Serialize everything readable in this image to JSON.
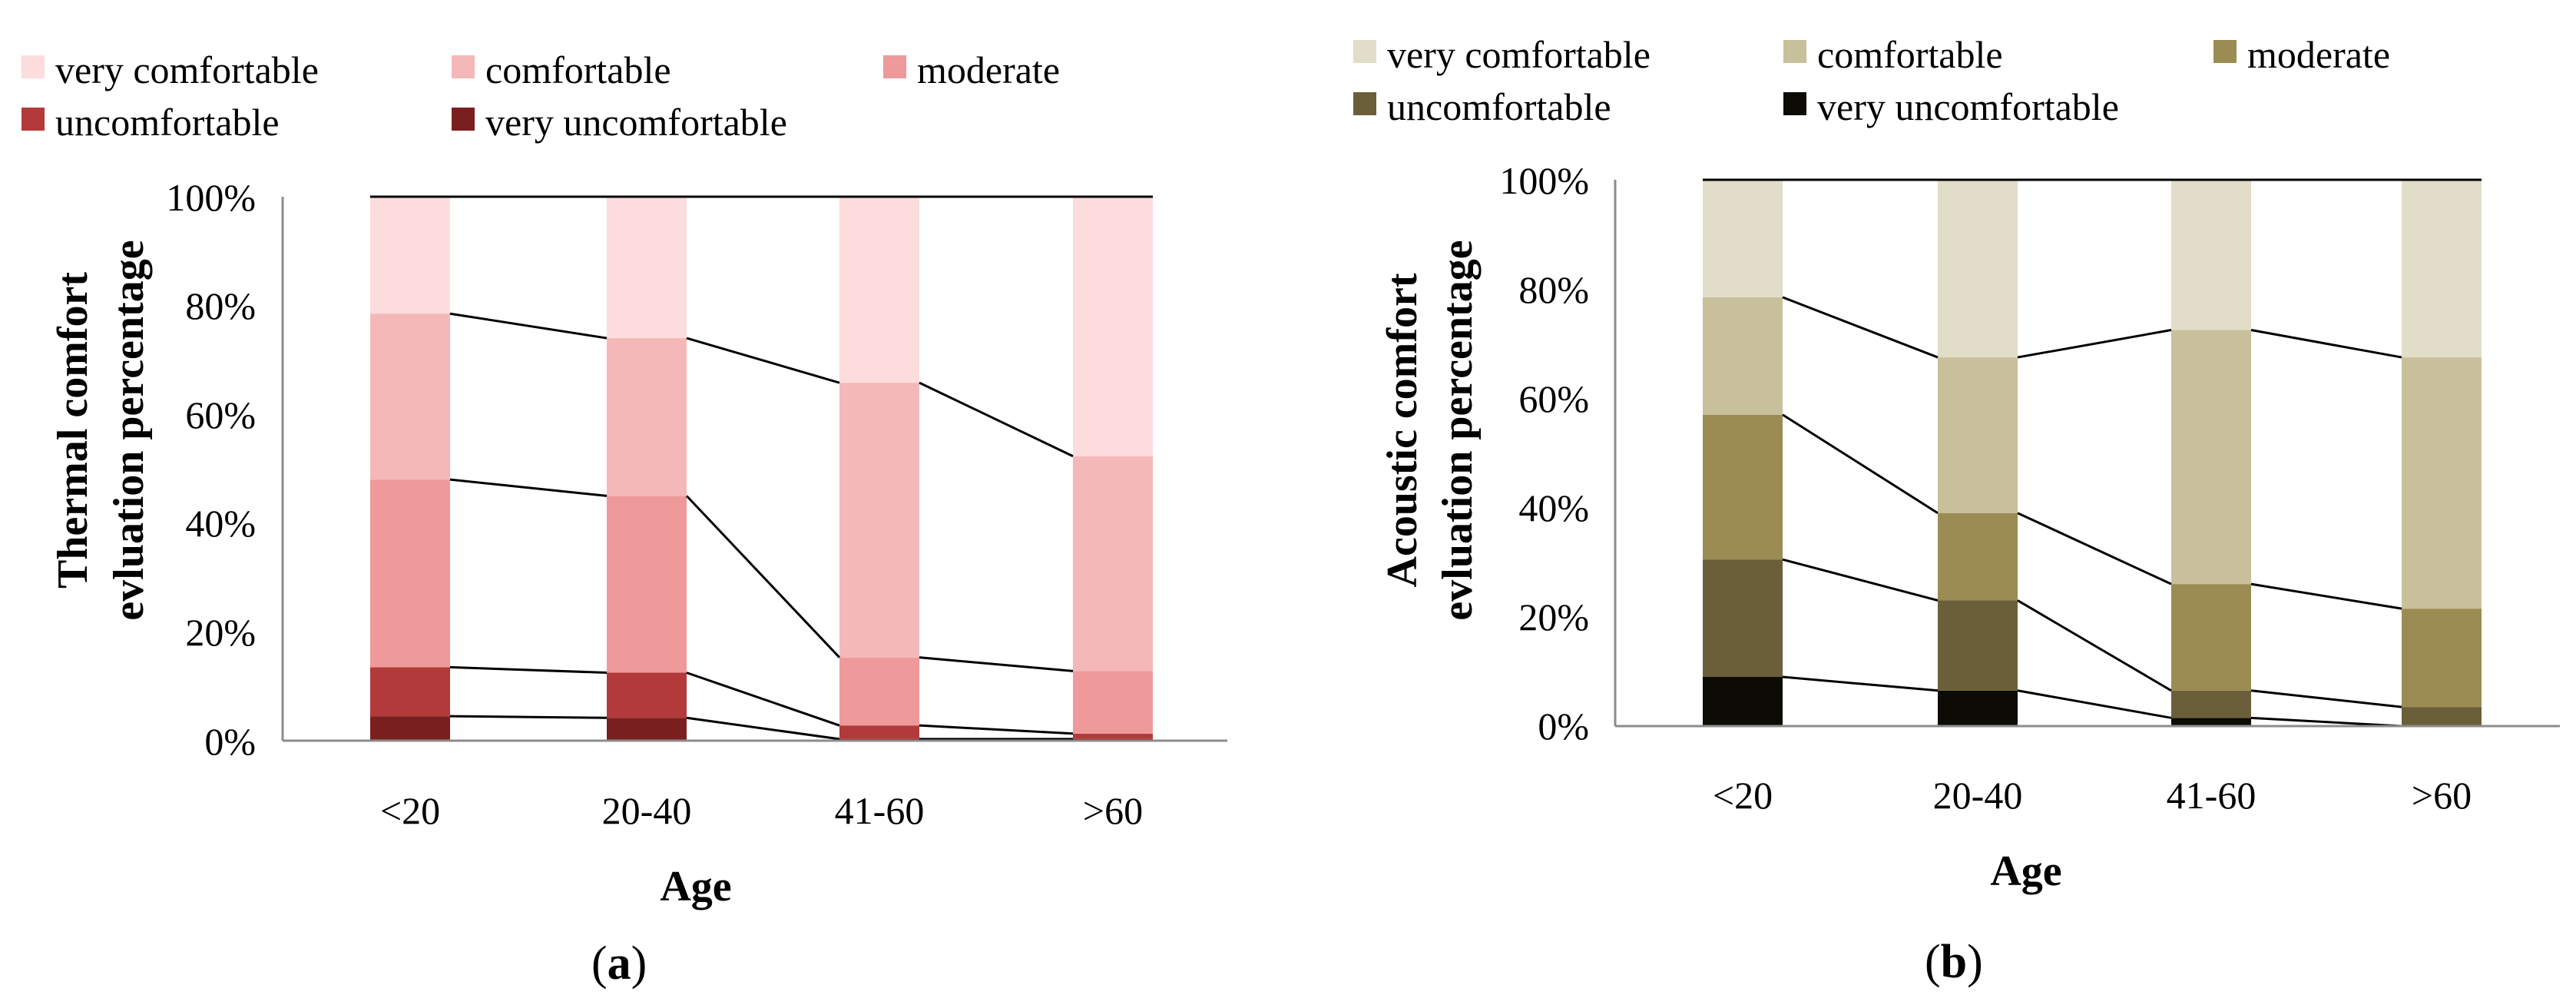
{
  "chart_data": [
    {
      "type": "bar",
      "stacked": true,
      "panel_label_open": "(",
      "panel_label_letter": "a",
      "panel_label_close": ")",
      "title": "",
      "xlabel": "Age",
      "ylabel_line1": "Thermal comfort",
      "ylabel_line2": "evluation percentage",
      "ylim": [
        0,
        100
      ],
      "yticks": [
        "0%",
        "20%",
        "40%",
        "60%",
        "80%",
        "100%"
      ],
      "legend_position": "top",
      "categories": [
        "<20",
        "20-40",
        "41-60",
        ">60"
      ],
      "series": [
        {
          "name": "very uncomfortable",
          "color": "#7a1f1f",
          "values": [
            4.5,
            4.2,
            0.3,
            0.3
          ]
        },
        {
          "name": "uncomfortable",
          "color": "#b23a3a",
          "values": [
            9,
            8.3,
            2.5,
            1
          ]
        },
        {
          "name": "moderate",
          "color": "#ee9a9a",
          "values": [
            34.5,
            32.5,
            12.5,
            11.5
          ]
        },
        {
          "name": "comfortable",
          "color": "#f5b8b8",
          "values": [
            30.5,
            29,
            50.5,
            39.5
          ]
        },
        {
          "name": "very comfortable",
          "color": "#fcdcdc",
          "values": [
            21.5,
            26,
            34.2,
            47.7
          ]
        }
      ],
      "legend_order": [
        "very comfortable",
        "comfortable",
        "moderate",
        "uncomfortable",
        "very uncomfortable"
      ]
    },
    {
      "type": "bar",
      "stacked": true,
      "panel_label_open": "(",
      "panel_label_letter": "b",
      "panel_label_close": ")",
      "title": "",
      "xlabel": "Age",
      "ylabel_line1": "Acoustic comfort",
      "ylabel_line2": "evluation percentage",
      "ylim": [
        0,
        100
      ],
      "yticks": [
        "0%",
        "20%",
        "40%",
        "60%",
        "80%",
        "100%"
      ],
      "legend_position": "top",
      "categories": [
        "<20",
        "20-40",
        "41-60",
        ">60"
      ],
      "series": [
        {
          "name": "very uncomfortable",
          "color": "#0c0b05",
          "values": [
            9,
            6.5,
            1.5,
            0
          ]
        },
        {
          "name": "uncomfortable",
          "color": "#6b5f3a",
          "values": [
            21.5,
            16.5,
            5,
            3.5
          ]
        },
        {
          "name": "moderate",
          "color": "#9a8c52",
          "values": [
            26.5,
            16,
            19.5,
            18
          ]
        },
        {
          "name": "comfortable",
          "color": "#c8c09b",
          "values": [
            21.5,
            28.5,
            46.5,
            46
          ]
        },
        {
          "name": "very comfortable",
          "color": "#e2ddc8",
          "values": [
            21.5,
            32.5,
            27.5,
            32.5
          ]
        }
      ],
      "legend_order": [
        "very comfortable",
        "comfortable",
        "moderate",
        "uncomfortable",
        "very uncomfortable"
      ]
    }
  ]
}
